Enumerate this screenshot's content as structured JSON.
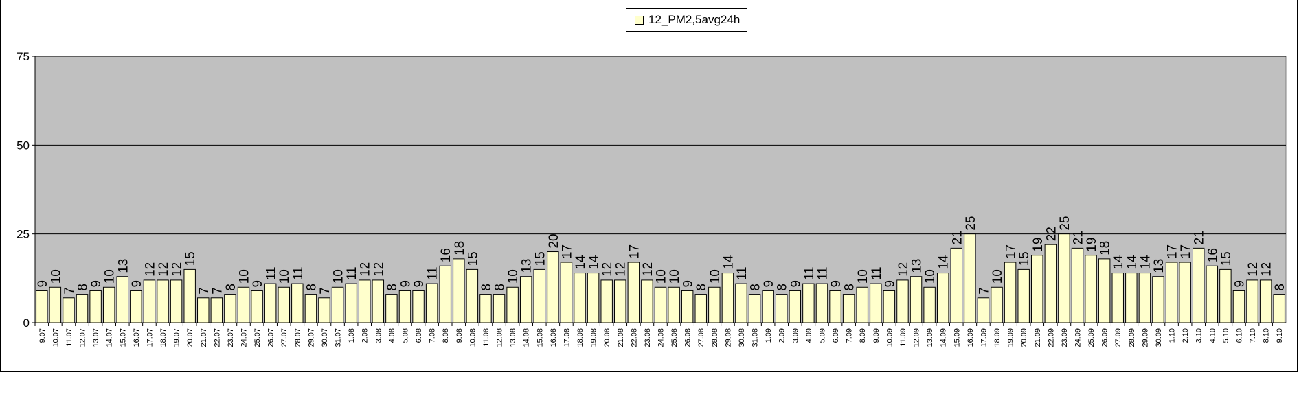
{
  "legend": {
    "label": "12_PM2,5avg24h"
  },
  "colors": {
    "plot_background": "#c0c0c0",
    "bar_fill": "#ffffcc",
    "bar_stroke": "#000000",
    "gridline": "#000000"
  },
  "chart_data": {
    "type": "bar",
    "xlabel": "",
    "ylabel": "",
    "ylim": [
      0,
      75
    ],
    "yticks": [
      0,
      25,
      50,
      75
    ],
    "grid": true,
    "legend_position": "top-center",
    "series": [
      {
        "name": "12_PM2,5avg24h",
        "values": [
          9,
          10,
          7,
          8,
          9,
          10,
          13,
          9,
          12,
          12,
          12,
          15,
          7,
          7,
          8,
          10,
          9,
          11,
          10,
          11,
          8,
          7,
          10,
          11,
          12,
          12,
          8,
          9,
          9,
          11,
          16,
          18,
          15,
          8,
          8,
          10,
          13,
          15,
          20,
          17,
          14,
          14,
          12,
          12,
          17,
          12,
          10,
          10,
          9,
          8,
          10,
          14,
          11,
          8,
          9,
          8,
          9,
          11,
          11,
          9,
          8,
          10,
          11,
          9,
          12,
          13,
          10,
          14,
          21,
          25,
          7,
          10,
          17,
          15,
          19,
          22,
          25,
          21,
          19,
          18,
          14,
          14,
          14,
          13,
          17,
          17,
          21,
          16,
          15,
          9,
          12,
          12,
          8
        ]
      }
    ],
    "categories": [
      "9.07",
      "10.07",
      "11.07",
      "12.07",
      "13.07",
      "14.07",
      "15.07",
      "16.07",
      "17.07",
      "18.07",
      "19.07",
      "20.07",
      "21.07",
      "22.07",
      "23.07",
      "24.07",
      "25.07",
      "26.07",
      "27.07",
      "28.07",
      "29.07",
      "30.07",
      "31.07",
      "1.08",
      "2.08",
      "3.08",
      "4.08",
      "5.08",
      "6.08",
      "7.08",
      "8.08",
      "9.08",
      "10.08",
      "11.08",
      "12.08",
      "13.08",
      "14.08",
      "15.08",
      "16.08",
      "17.08",
      "18.08",
      "19.08",
      "20.08",
      "21.08",
      "22.08",
      "23.08",
      "24.08",
      "25.08",
      "26.08",
      "27.08",
      "28.08",
      "29.08",
      "30.08",
      "31.08",
      "1.09",
      "2.09",
      "3.09",
      "4.09",
      "5.09",
      "6.09",
      "7.09",
      "8.09",
      "9.09",
      "10.09",
      "11.09",
      "12.09",
      "13.09",
      "14.09",
      "15.09",
      "16.09",
      "17.09",
      "18.09",
      "19.09",
      "20.09",
      "21.09",
      "22.09",
      "23.09",
      "24.09",
      "25.09",
      "26.09",
      "27.09",
      "28.09",
      "29.09",
      "30.09",
      "1.10",
      "2.10",
      "3.10",
      "4.10",
      "5.10",
      "6.10",
      "7.10",
      "8.10",
      "9.10"
    ],
    "data_labels": [
      "9",
      "10",
      "7",
      "8",
      "9",
      "10",
      "13",
      "9",
      "12",
      "12",
      "12",
      "15",
      "7",
      "7",
      "8",
      "10",
      "9",
      "11",
      "10",
      "11",
      "8",
      "7",
      "10",
      "11",
      "12",
      "12",
      "8",
      "9",
      "9",
      "11",
      "16",
      "18",
      "15",
      "8",
      "8",
      "10",
      "13",
      "15",
      "20",
      "17",
      "14",
      "14",
      "12",
      "12",
      "17",
      "12",
      "10",
      "10",
      "9",
      "8",
      "10",
      "14",
      "11",
      "8",
      "9",
      "8",
      "9",
      "11",
      "11",
      "9",
      "8",
      "10",
      "11",
      "9",
      "12",
      "13",
      "10",
      "14",
      "21",
      "25",
      "7",
      "10",
      "17",
      "15",
      "19",
      "22",
      "25",
      "21",
      "19",
      "18",
      "14",
      "14",
      "14",
      "13",
      "17",
      "17",
      "21",
      "16",
      "15",
      "9",
      "12",
      "12",
      "8"
    ]
  }
}
